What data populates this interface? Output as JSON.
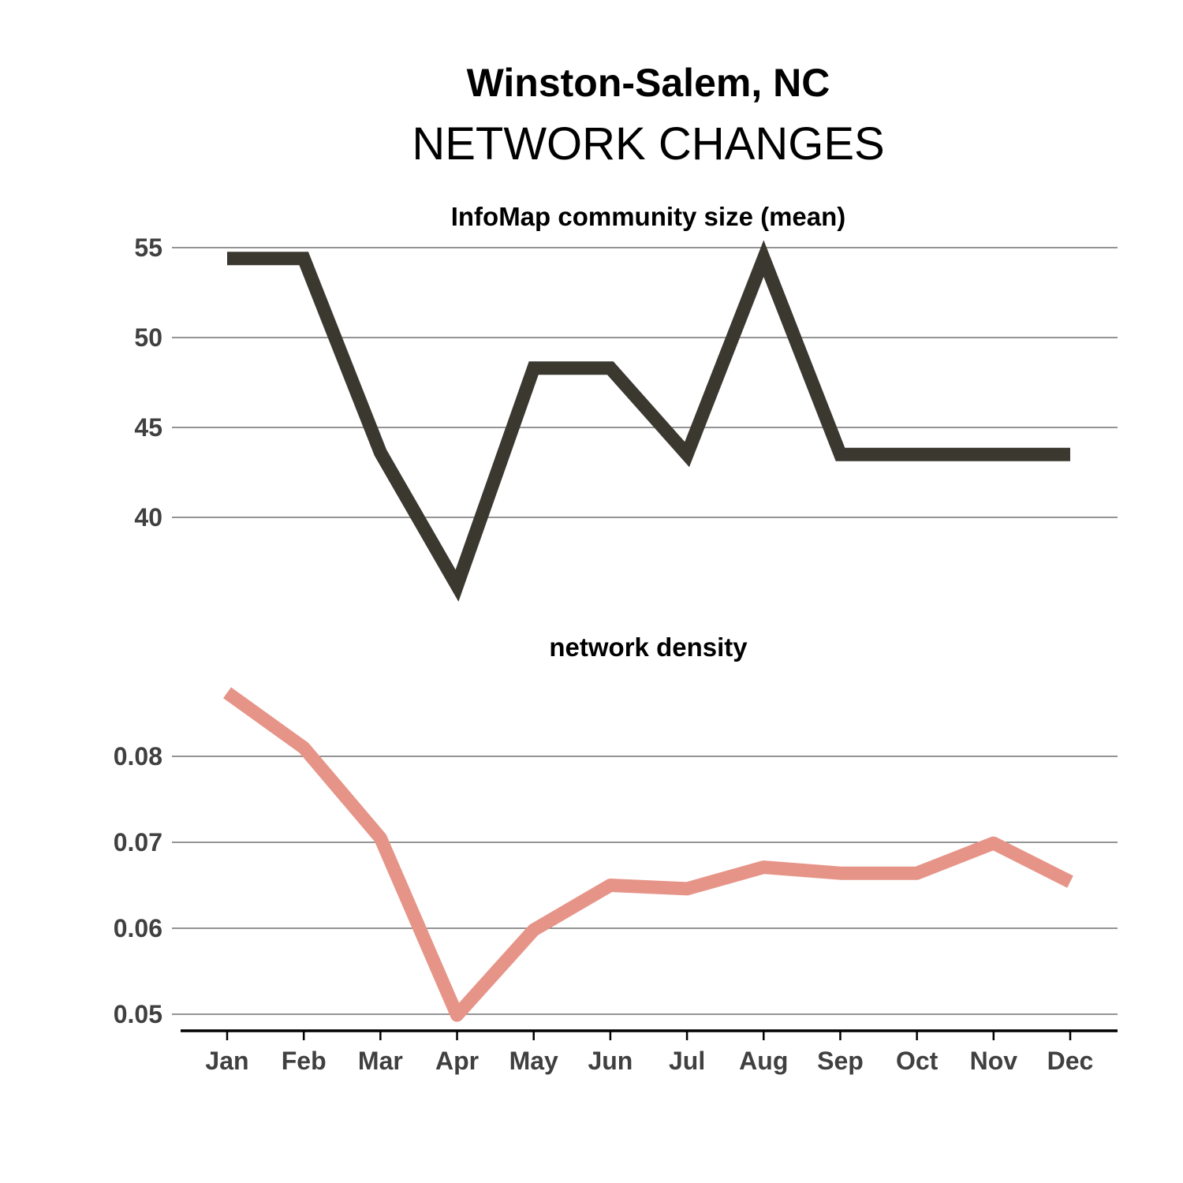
{
  "header": {
    "title": "Winston-Salem, NC",
    "subtitle": "NETWORK CHANGES"
  },
  "chart_data": [
    {
      "type": "line",
      "title": "InfoMap community size (mean)",
      "categories": [
        "Jan",
        "Feb",
        "Mar",
        "Apr",
        "May",
        "Jun",
        "Jul",
        "Aug",
        "Sep",
        "Oct",
        "Nov",
        "Dec"
      ],
      "values": [
        54.4,
        54.4,
        43.6,
        36.2,
        48.3,
        48.3,
        43.5,
        54.4,
        43.5,
        43.5,
        43.5,
        43.5
      ],
      "yticks": [
        40,
        45,
        50,
        55
      ],
      "ylim": [
        35.5,
        55
      ],
      "grid": true,
      "color": "#3b3830"
    },
    {
      "type": "line",
      "title": "network density",
      "categories": [
        "Jan",
        "Feb",
        "Mar",
        "Apr",
        "May",
        "Jun",
        "Jul",
        "Aug",
        "Sep",
        "Oct",
        "Nov",
        "Dec"
      ],
      "values": [
        0.0874,
        0.081,
        0.0705,
        0.0499,
        0.0598,
        0.065,
        0.0646,
        0.0671,
        0.0664,
        0.0664,
        0.0699,
        0.0654
      ],
      "yticks": [
        0.05,
        0.06,
        0.07,
        0.08
      ],
      "ylim": [
        0.05,
        0.08
      ],
      "grid": true,
      "color": "#e69488"
    }
  ]
}
